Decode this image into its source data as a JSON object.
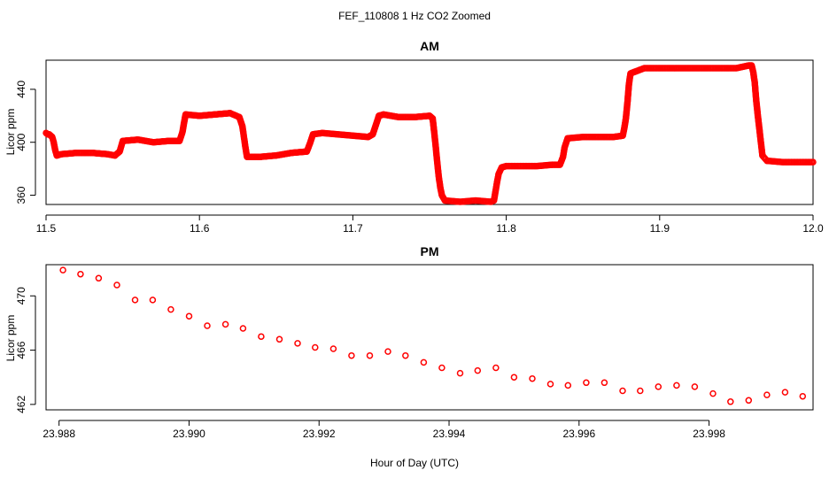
{
  "figure": {
    "title": "FEF_110808  1 Hz CO2 Zoomed",
    "xlabel": "Hour of Day (UTC)"
  },
  "chart_data": [
    {
      "type": "scatter",
      "title": "AM",
      "xlabel": "",
      "ylabel": "Licor ppm",
      "xlim": [
        11.5,
        12.0
      ],
      "ylim": [
        353,
        462
      ],
      "x_ticks": [
        "11.5",
        "11.6",
        "11.7",
        "11.8",
        "11.9",
        "12.0"
      ],
      "y_ticks": [
        "360",
        "400",
        "440"
      ],
      "grid": false,
      "marker_color": "#ff0000",
      "series": [
        {
          "points": [
            [
              11.5,
              407
            ],
            [
              11.501,
              406
            ],
            [
              11.502,
              406
            ],
            [
              11.503,
              405
            ],
            [
              11.504,
              404
            ],
            [
              11.505,
              400
            ],
            [
              11.506,
              394
            ],
            [
              11.507,
              390
            ],
            [
              11.51,
              391
            ],
            [
              11.52,
              392
            ],
            [
              11.53,
              392
            ],
            [
              11.54,
              391
            ],
            [
              11.545,
              390
            ],
            [
              11.548,
              393
            ],
            [
              11.55,
              401
            ],
            [
              11.56,
              402
            ],
            [
              11.57,
              400
            ],
            [
              11.58,
              401
            ],
            [
              11.587,
              401
            ],
            [
              11.589,
              408
            ],
            [
              11.59,
              415
            ],
            [
              11.591,
              421
            ],
            [
              11.6,
              420
            ],
            [
              11.61,
              421
            ],
            [
              11.62,
              422
            ],
            [
              11.626,
              419
            ],
            [
              11.628,
              412
            ],
            [
              11.629,
              404
            ],
            [
              11.63,
              396
            ],
            [
              11.631,
              389
            ],
            [
              11.64,
              389
            ],
            [
              11.65,
              390
            ],
            [
              11.66,
              392
            ],
            [
              11.67,
              393
            ],
            [
              11.672,
              399
            ],
            [
              11.674,
              406
            ],
            [
              11.68,
              407
            ],
            [
              11.69,
              406
            ],
            [
              11.7,
              405
            ],
            [
              11.71,
              404
            ],
            [
              11.713,
              406
            ],
            [
              11.715,
              413
            ],
            [
              11.717,
              420
            ],
            [
              11.72,
              421
            ],
            [
              11.73,
              419
            ],
            [
              11.74,
              419
            ],
            [
              11.75,
              420
            ],
            [
              11.752,
              418
            ],
            [
              11.753,
              408
            ],
            [
              11.754,
              397
            ],
            [
              11.755,
              385
            ],
            [
              11.756,
              374
            ],
            [
              11.757,
              366
            ],
            [
              11.758,
              360
            ],
            [
              11.76,
              356
            ],
            [
              11.77,
              355
            ],
            [
              11.78,
              356
            ],
            [
              11.79,
              355
            ],
            [
              11.792,
              356
            ],
            [
              11.793,
              363
            ],
            [
              11.794,
              370
            ],
            [
              11.795,
              376
            ],
            [
              11.797,
              381
            ],
            [
              11.8,
              382
            ],
            [
              11.81,
              382
            ],
            [
              11.82,
              382
            ],
            [
              11.83,
              383
            ],
            [
              11.835,
              383
            ],
            [
              11.837,
              389
            ],
            [
              11.838,
              396
            ],
            [
              11.84,
              403
            ],
            [
              11.85,
              404
            ],
            [
              11.86,
              404
            ],
            [
              11.87,
              404
            ],
            [
              11.876,
              405
            ],
            [
              11.877,
              411
            ],
            [
              11.878,
              418
            ],
            [
              11.879,
              430
            ],
            [
              11.88,
              444
            ],
            [
              11.881,
              452
            ],
            [
              11.89,
              456
            ],
            [
              11.9,
              456
            ],
            [
              11.91,
              456
            ],
            [
              11.92,
              456
            ],
            [
              11.93,
              456
            ],
            [
              11.94,
              456
            ],
            [
              11.95,
              456
            ],
            [
              11.958,
              458
            ],
            [
              11.96,
              458
            ],
            [
              11.961,
              453
            ],
            [
              11.962,
              445
            ],
            [
              11.963,
              431
            ],
            [
              11.964,
              420
            ],
            [
              11.965,
              410
            ],
            [
              11.966,
              400
            ],
            [
              11.967,
              390
            ],
            [
              11.97,
              386
            ],
            [
              11.98,
              385
            ],
            [
              11.99,
              385
            ],
            [
              12.0,
              385
            ]
          ]
        }
      ]
    },
    {
      "type": "scatter",
      "title": "PM",
      "xlabel": "",
      "ylabel": "Licor ppm",
      "xlim": [
        23.9878,
        23.9996
      ],
      "ylim": [
        461.6,
        472.3
      ],
      "x_ticks": [
        "23.988",
        "23.990",
        "23.992",
        "23.994",
        "23.996",
        "23.998"
      ],
      "y_ticks": [
        "462",
        "466",
        "470"
      ],
      "grid": false,
      "marker_color": "#ff0000",
      "series": [
        {
          "x": [
            23.98806,
            23.98833,
            23.98861,
            23.98889,
            23.98917,
            23.98944,
            23.98972,
            23.99,
            23.99028,
            23.99056,
            23.99083,
            23.99111,
            23.99139,
            23.99167,
            23.99194,
            23.99222,
            23.9925,
            23.99278,
            23.99306,
            23.99333,
            23.99361,
            23.99389,
            23.99417,
            23.99444,
            23.99472,
            23.995,
            23.99528,
            23.99556,
            23.99583,
            23.99611,
            23.99639,
            23.99667,
            23.99694,
            23.99722,
            23.9975,
            23.99778,
            23.99806,
            23.99833,
            23.99861,
            23.99889,
            23.99917,
            23.99944
          ],
          "y": [
            471.9,
            471.6,
            471.3,
            470.8,
            469.7,
            469.7,
            469.0,
            468.5,
            467.8,
            467.9,
            467.6,
            467.0,
            466.8,
            466.5,
            466.2,
            466.1,
            465.6,
            465.6,
            465.9,
            465.6,
            465.1,
            464.7,
            464.3,
            464.5,
            464.7,
            464.0,
            463.9,
            463.5,
            463.4,
            463.6,
            463.6,
            463.0,
            463.0,
            463.3,
            463.4,
            463.3,
            462.8,
            462.2,
            462.3,
            462.7,
            462.9,
            462.6
          ]
        }
      ]
    }
  ]
}
